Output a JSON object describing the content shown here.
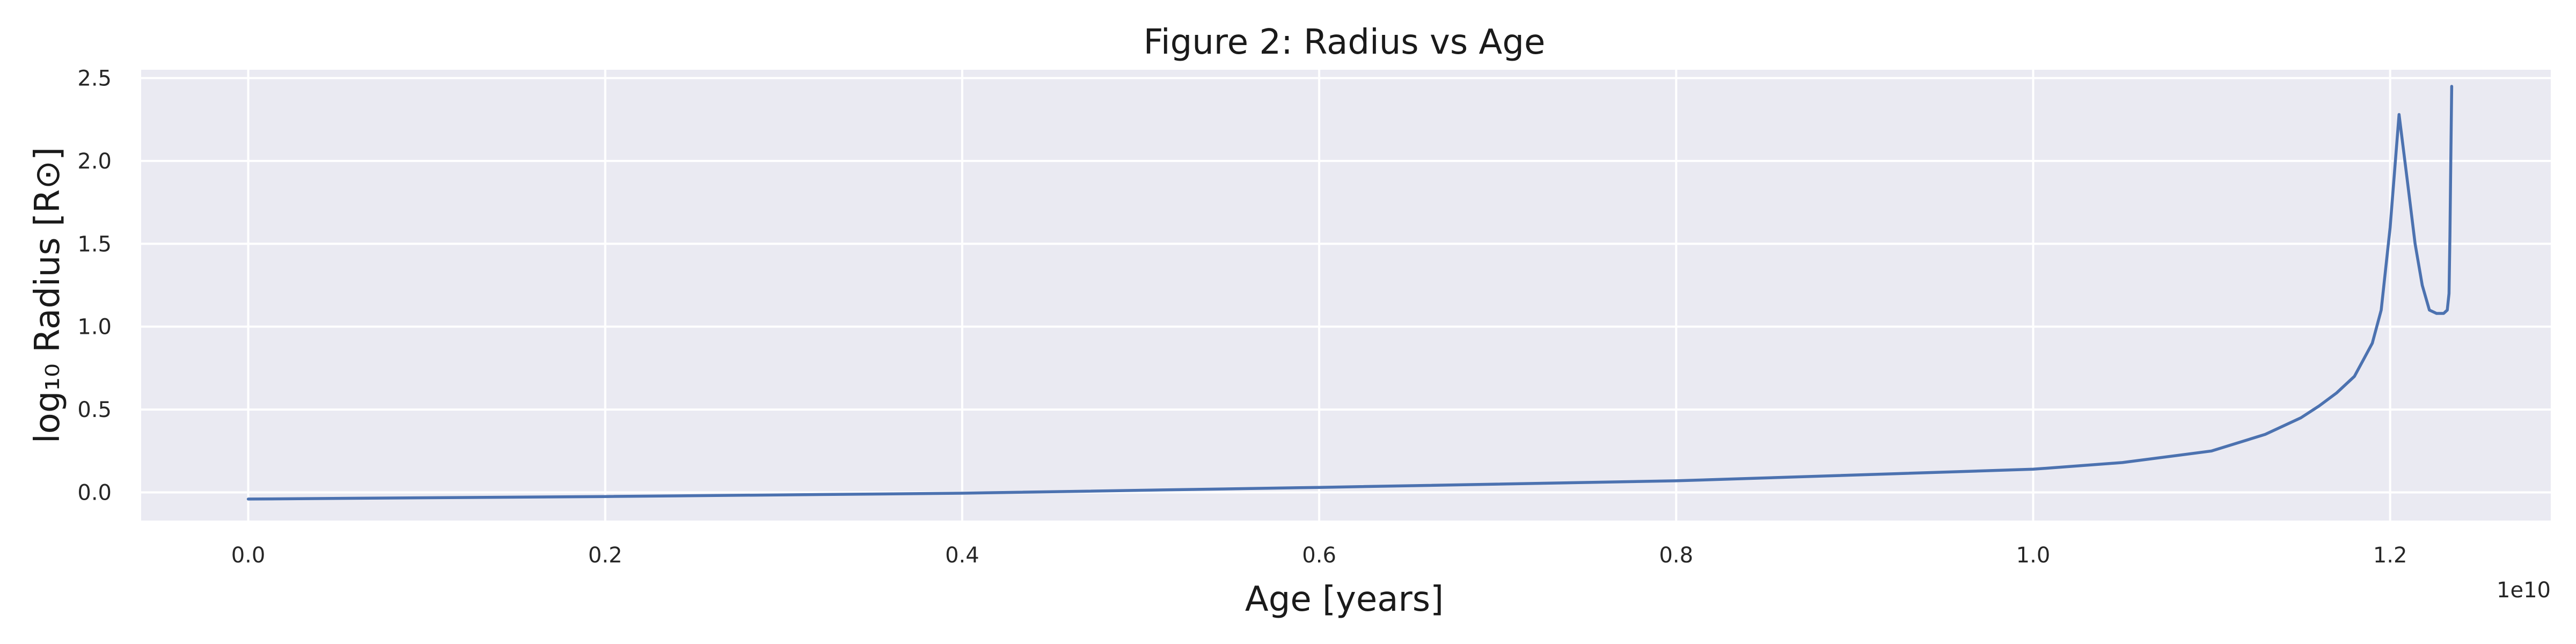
{
  "chart_data": {
    "type": "line",
    "title": "Figure 2: Radius vs Age",
    "xlabel": "Age [years]",
    "ylabel": "log₁₀ Radius [R⊙]",
    "x_offset_label": "1e10",
    "x_scale_factor": 10000000000,
    "xlim": [
      -0.06,
      1.29
    ],
    "ylim": [
      -0.17,
      2.55
    ],
    "x_ticks": [
      0.0,
      0.2,
      0.4,
      0.6,
      0.8,
      1.0,
      1.2
    ],
    "x_tick_labels": [
      "0.0",
      "0.2",
      "0.4",
      "0.6",
      "0.8",
      "1.0",
      "1.2"
    ],
    "y_ticks": [
      0.0,
      0.5,
      1.0,
      1.5,
      2.0,
      2.5
    ],
    "y_tick_labels": [
      "0.0",
      "0.5",
      "1.0",
      "1.5",
      "2.0",
      "2.5"
    ],
    "grid": true,
    "background": "#eaeaf2",
    "line_color": "#4c72b0",
    "series": [
      {
        "x": [
          0.0,
          0.2,
          0.4,
          0.6,
          0.8,
          1.0,
          1.05,
          1.1,
          1.13,
          1.15,
          1.16,
          1.17,
          1.18,
          1.185,
          1.19,
          1.195,
          1.2,
          1.205,
          1.21,
          1.214,
          1.218,
          1.222,
          1.226,
          1.23,
          1.232,
          1.233,
          1.2335,
          1.234,
          1.2345
        ],
        "y": [
          -0.04,
          -0.025,
          -0.005,
          0.03,
          0.07,
          0.14,
          0.18,
          0.25,
          0.35,
          0.45,
          0.52,
          0.6,
          0.7,
          0.8,
          0.9,
          1.1,
          1.6,
          2.28,
          1.85,
          1.5,
          1.25,
          1.1,
          1.08,
          1.08,
          1.1,
          1.2,
          1.55,
          2.0,
          2.45
        ]
      }
    ]
  }
}
